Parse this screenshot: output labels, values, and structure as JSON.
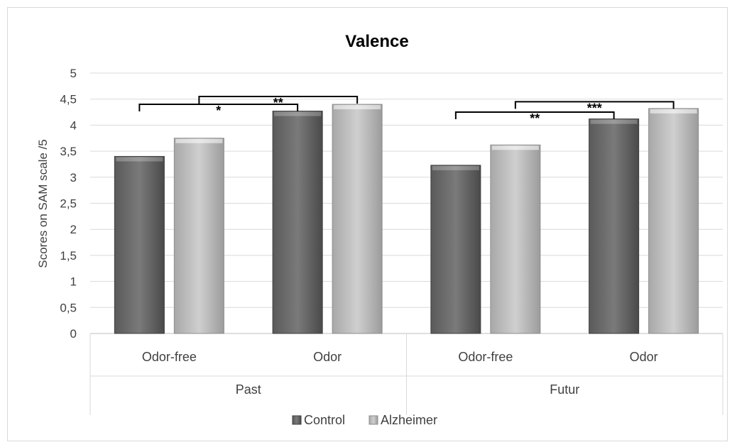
{
  "chart_data": {
    "type": "bar",
    "title": "Valence",
    "ylabel": "Scores on SAM scale /5",
    "xlabel": "",
    "ylim": [
      0,
      5
    ],
    "yticks": [
      "0",
      "0,5",
      "1",
      "1,5",
      "2",
      "2,5",
      "3",
      "3,5",
      "4",
      "4,5",
      "5"
    ],
    "groups": [
      "Past",
      "Futur"
    ],
    "categories": [
      "Odor-free",
      "Odor",
      "Odor-free",
      "Odor"
    ],
    "series": [
      {
        "name": "Control",
        "color": "#6e6e6e",
        "values": [
          3.4,
          4.27,
          3.23,
          4.12
        ]
      },
      {
        "name": "Alzheimer",
        "color": "#bfbfbf",
        "values": [
          3.75,
          4.4,
          3.62,
          4.32
        ]
      }
    ],
    "legend_position": "bottom",
    "grid": true,
    "annotations": [
      {
        "label": "*",
        "from": {
          "category": 0,
          "series": 0
        },
        "to": {
          "category": 1,
          "series": 0
        },
        "y": 4.4
      },
      {
        "label": "**",
        "from": {
          "category": 0,
          "series": 1
        },
        "to": {
          "category": 1,
          "series": 1
        },
        "y": 4.55
      },
      {
        "label": "**",
        "from": {
          "category": 2,
          "series": 0
        },
        "to": {
          "category": 3,
          "series": 0
        },
        "y": 4.25
      },
      {
        "label": "***",
        "from": {
          "category": 2,
          "series": 1
        },
        "to": {
          "category": 3,
          "series": 1
        },
        "y": 4.45
      }
    ]
  }
}
